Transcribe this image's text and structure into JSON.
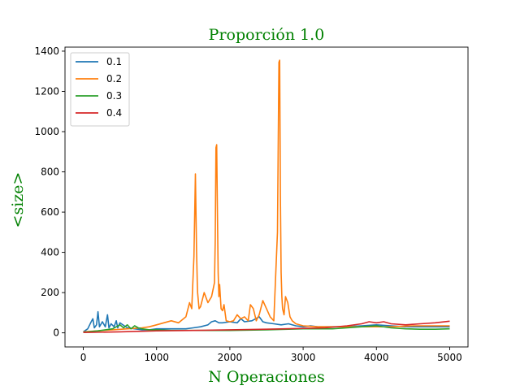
{
  "chart_data": {
    "type": "line",
    "title": "Proporción 1.0",
    "xlabel": "N Operaciones",
    "ylabel": "<size>",
    "xlim": [
      -250,
      5250
    ],
    "ylim": [
      -70,
      1420
    ],
    "xticks": [
      0,
      1000,
      2000,
      3000,
      4000,
      5000
    ],
    "yticks": [
      0,
      200,
      400,
      600,
      800,
      1000,
      1200,
      1400
    ],
    "legend_position": "top-left",
    "grid": false,
    "series": [
      {
        "name": "0.1",
        "color": "#1f77b4",
        "x": [
          0,
          60,
          100,
          130,
          150,
          180,
          200,
          220,
          260,
          300,
          330,
          350,
          380,
          420,
          450,
          470,
          500,
          560,
          600,
          700,
          800,
          900,
          1000,
          1200,
          1400,
          1500,
          1600,
          1700,
          1750,
          1800,
          1850,
          1900,
          2000,
          2100,
          2150,
          2200,
          2300,
          2400,
          2450,
          2500,
          2600,
          2700,
          2800,
          2900,
          3000,
          3100,
          3200,
          3500,
          3800,
          4000,
          4200,
          4400,
          4600,
          4800,
          5000
        ],
        "y": [
          5,
          20,
          50,
          70,
          25,
          40,
          105,
          30,
          55,
          30,
          90,
          25,
          45,
          30,
          60,
          25,
          50,
          35,
          25,
          20,
          15,
          15,
          20,
          20,
          20,
          25,
          30,
          40,
          55,
          60,
          50,
          50,
          55,
          50,
          70,
          55,
          60,
          80,
          55,
          50,
          45,
          40,
          45,
          35,
          30,
          35,
          30,
          30,
          35,
          40,
          35,
          30,
          30,
          30,
          30
        ]
      },
      {
        "name": "0.2",
        "color": "#ff7f0e",
        "x": [
          0,
          200,
          400,
          600,
          800,
          900,
          1000,
          1100,
          1200,
          1300,
          1400,
          1450,
          1480,
          1510,
          1530,
          1545,
          1555,
          1560,
          1580,
          1600,
          1650,
          1700,
          1750,
          1790,
          1800,
          1810,
          1820,
          1830,
          1840,
          1850,
          1860,
          1880,
          1900,
          1920,
          1950,
          2000,
          2050,
          2100,
          2150,
          2200,
          2250,
          2280,
          2320,
          2360,
          2400,
          2450,
          2500,
          2550,
          2600,
          2650,
          2670,
          2680,
          2690,
          2700,
          2710,
          2720,
          2740,
          2760,
          2790,
          2820,
          2850,
          2900,
          3000,
          3200,
          3500,
          3800,
          4000,
          4200,
          4500,
          4800,
          5000
        ],
        "y": [
          5,
          10,
          15,
          20,
          25,
          30,
          40,
          50,
          60,
          50,
          80,
          150,
          120,
          380,
          790,
          410,
          250,
          200,
          120,
          130,
          200,
          150,
          180,
          250,
          460,
          920,
          935,
          600,
          300,
          180,
          240,
          120,
          110,
          140,
          60,
          55,
          60,
          90,
          70,
          80,
          60,
          140,
          120,
          60,
          90,
          160,
          120,
          80,
          60,
          500,
          1345,
          1355,
          680,
          300,
          180,
          120,
          90,
          180,
          150,
          80,
          60,
          45,
          35,
          30,
          30,
          30,
          30,
          30,
          35,
          35,
          35
        ]
      },
      {
        "name": "0.3",
        "color": "#2ca02c",
        "x": [
          0,
          200,
          400,
          500,
          550,
          600,
          650,
          700,
          750,
          800,
          900,
          1000,
          1200,
          1500,
          1800,
          2000,
          2500,
          3000,
          3400,
          3800,
          4000,
          4200,
          4400,
          4600,
          4800,
          5000
        ],
        "y": [
          3,
          10,
          20,
          40,
          25,
          40,
          20,
          35,
          25,
          20,
          15,
          15,
          12,
          12,
          12,
          12,
          15,
          20,
          20,
          30,
          35,
          25,
          20,
          18,
          18,
          20
        ]
      },
      {
        "name": "0.4",
        "color": "#d62728",
        "x": [
          0,
          500,
          1000,
          1500,
          2000,
          2500,
          3000,
          3300,
          3600,
          3800,
          3900,
          4000,
          4100,
          4200,
          4400,
          4600,
          4800,
          5000
        ],
        "y": [
          2,
          5,
          10,
          12,
          15,
          18,
          22,
          25,
          35,
          45,
          55,
          50,
          55,
          45,
          40,
          45,
          50,
          58
        ]
      }
    ]
  }
}
